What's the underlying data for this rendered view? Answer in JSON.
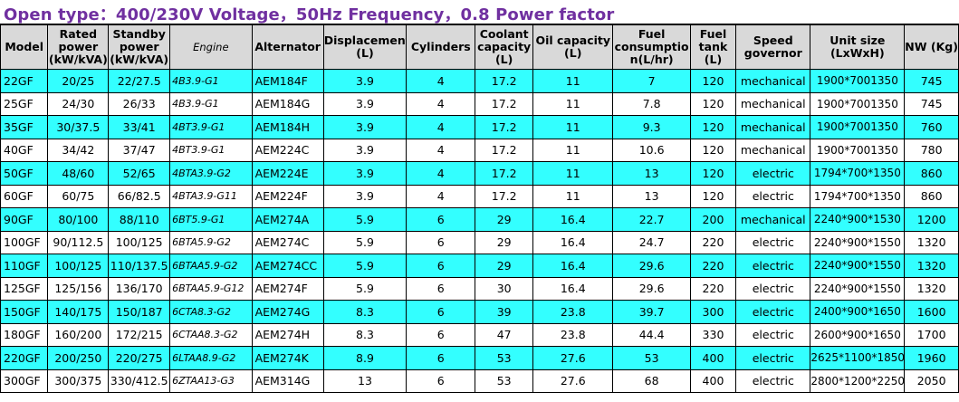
{
  "title": "Open type：400/230V Voltage，50Hz Frequency，0.8 Power factor",
  "colors": {
    "title": "#7030a0",
    "row_highlight": "#33ffff",
    "header_bg": "#d9d9d9"
  },
  "headers": [
    "Model",
    "Rated power (kW/kVA)",
    "Standby power (kW/kVA)",
    "Engine",
    "Alternator",
    "Displacement (L)",
    "Cylinders",
    "Coolant capacity (L)",
    "Oil capacity (L)",
    "Fuel consumptio n(L/hr)",
    "Fuel tank (L)",
    "Speed governor",
    "Unit size (LxWxH)",
    "NW (Kg)"
  ],
  "rows": [
    [
      "22GF",
      "20/25",
      "22/27.5",
      "4B3.9-G1",
      "AEM184F",
      "3.9",
      "4",
      "17.2",
      "11",
      "7",
      "120",
      "mechanical",
      "1900*7001350",
      "745"
    ],
    [
      "25GF",
      "24/30",
      "26/33",
      "4B3.9-G1",
      "AEM184G",
      "3.9",
      "4",
      "17.2",
      "11",
      "7.8",
      "120",
      "mechanical",
      "1900*7001350",
      "745"
    ],
    [
      "35GF",
      "30/37.5",
      "33/41",
      "4BT3.9-G1",
      "AEM184H",
      "3.9",
      "4",
      "17.2",
      "11",
      "9.3",
      "120",
      "mechanical",
      "1900*7001350",
      "760"
    ],
    [
      "40GF",
      "34/42",
      "37/47",
      "4BT3.9-G1",
      "AEM224C",
      "3.9",
      "4",
      "17.2",
      "11",
      "10.6",
      "120",
      "mechanical",
      "1900*7001350",
      "780"
    ],
    [
      "50GF",
      "48/60",
      "52/65",
      "4BTA3.9-G2",
      "AEM224E",
      "3.9",
      "4",
      "17.2",
      "11",
      "13",
      "120",
      "electric",
      "1794*700*1350",
      "860"
    ],
    [
      "60GF",
      "60/75",
      "66/82.5",
      "4BTA3.9-G11",
      "AEM224F",
      "3.9",
      "4",
      "17.2",
      "11",
      "13",
      "120",
      "electric",
      "1794*700*1350",
      "860"
    ],
    [
      "90GF",
      "80/100",
      "88/110",
      "6BT5.9-G1",
      "AEM274A",
      "5.9",
      "6",
      "29",
      "16.4",
      "22.7",
      "200",
      "mechanical",
      "2240*900*1530",
      "1200"
    ],
    [
      "100GF",
      "90/112.5",
      "100/125",
      "6BTA5.9-G2",
      "AEM274C",
      "5.9",
      "6",
      "29",
      "16.4",
      "24.7",
      "220",
      "electric",
      "2240*900*1550",
      "1320"
    ],
    [
      "110GF",
      "100/125",
      "110/137.5",
      "6BTAA5.9-G2",
      "AEM274CC",
      "5.9",
      "6",
      "29",
      "16.4",
      "29.6",
      "220",
      "electric",
      "2240*900*1550",
      "1320"
    ],
    [
      "125GF",
      "125/156",
      "136/170",
      "6BTAA5.9-G12",
      "AEM274F",
      "5.9",
      "6",
      "30",
      "16.4",
      "29.6",
      "220",
      "electric",
      "2240*900*1550",
      "1320"
    ],
    [
      "150GF",
      "140/175",
      "150/187",
      "6CTA8.3-G2",
      "AEM274G",
      "8.3",
      "6",
      "39",
      "23.8",
      "39.7",
      "300",
      "electric",
      "2400*900*1650",
      "1600"
    ],
    [
      "180GF",
      "160/200",
      "172/215",
      "6CTAA8.3-G2",
      "AEM274H",
      "8.3",
      "6",
      "47",
      "23.8",
      "44.4",
      "330",
      "electric",
      "2600*900*1650",
      "1700"
    ],
    [
      "220GF",
      "200/250",
      "220/275",
      "6LTAA8.9-G2",
      "AEM274K",
      "8.9",
      "6",
      "53",
      "27.6",
      "53",
      "400",
      "electric",
      "2625*1100*1850",
      "1960"
    ],
    [
      "300GF",
      "300/375",
      "330/412.5",
      "6ZTAA13-G3",
      "AEM314G",
      "13",
      "6",
      "53",
      "27.6",
      "68",
      "400",
      "electric",
      "2800*1200*2250",
      "2050"
    ]
  ]
}
